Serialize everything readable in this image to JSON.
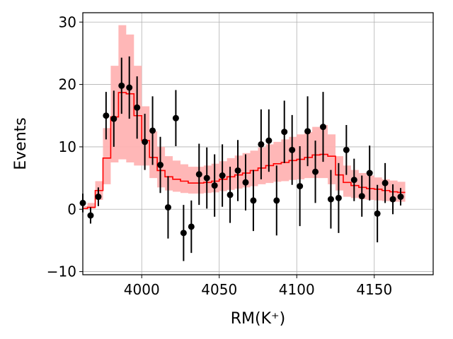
{
  "chart_data": {
    "type": "scatter",
    "title": "",
    "xlabel": "RM(K⁺)",
    "ylabel": "Events",
    "xlim": [
      3962,
      4188
    ],
    "ylim": [
      -10.5,
      31.5
    ],
    "xticks": [
      4000,
      4050,
      4100,
      4150
    ],
    "yticks": [
      -10,
      0,
      10,
      20,
      30
    ],
    "ytick_labels": [
      "−10",
      "0",
      "10",
      "20",
      "30"
    ],
    "grid": true,
    "legend": "none",
    "colors": {
      "data": "#000000",
      "fit_line": "#ff0000",
      "band": "#ffb3b3"
    },
    "series": [
      {
        "kind": "data_points_with_errors",
        "x": [
          3962,
          3967,
          3972,
          3977,
          3982,
          3987,
          3992,
          3997,
          4002,
          4007,
          4012,
          4017,
          4022,
          4027,
          4032,
          4037,
          4042,
          4047,
          4052,
          4057,
          4062,
          4067,
          4072,
          4077,
          4082,
          4087,
          4092,
          4097,
          4102,
          4107,
          4112,
          4117,
          4122,
          4127,
          4132,
          4137,
          4142,
          4147,
          4152,
          4157,
          4162,
          4167
        ],
        "y": [
          1.0,
          -1.0,
          2.0,
          15.0,
          14.5,
          19.8,
          19.5,
          16.3,
          10.8,
          12.6,
          7.1,
          0.3,
          14.6,
          -3.8,
          -2.8,
          5.6,
          5.0,
          3.8,
          5.4,
          2.3,
          6.2,
          4.3,
          1.4,
          10.4,
          11.0,
          1.4,
          12.4,
          9.5,
          3.7,
          12.5,
          6.0,
          13.2,
          1.6,
          1.8,
          9.5,
          4.7,
          2.1,
          5.8,
          -0.7,
          4.2,
          1.6,
          2.0
        ],
        "err": [
          1.5,
          1.3,
          1.5,
          3.8,
          4.5,
          4.5,
          5.0,
          5.0,
          4.5,
          5.5,
          4.5,
          5.0,
          4.5,
          4.5,
          4.2,
          4.9,
          4.9,
          5.0,
          5.0,
          4.5,
          4.9,
          4.5,
          4.9,
          5.6,
          5.0,
          5.6,
          5.0,
          5.6,
          6.4,
          5.6,
          5.0,
          5.6,
          4.7,
          5.6,
          4.0,
          3.4,
          3.3,
          4.4,
          4.6,
          3.2,
          2.4,
          1.4
        ]
      },
      {
        "kind": "fit_step_with_band",
        "edges": [
          3962,
          3965,
          3970,
          3975,
          3980,
          3985,
          3990,
          3995,
          4000,
          4005,
          4010,
          4015,
          4020,
          4025,
          4030,
          4035,
          4040,
          4045,
          4050,
          4055,
          4060,
          4065,
          4070,
          4075,
          4080,
          4085,
          4090,
          4095,
          4100,
          4105,
          4110,
          4115,
          4120,
          4125,
          4130,
          4135,
          4140,
          4145,
          4150,
          4155,
          4160,
          4165,
          4170
        ],
        "y": [
          0.1,
          0.3,
          3.0,
          8.2,
          14.8,
          18.7,
          18.5,
          15.0,
          11.0,
          8.3,
          6.2,
          5.2,
          4.8,
          4.5,
          4.2,
          4.2,
          4.3,
          4.5,
          4.8,
          5.2,
          5.5,
          5.8,
          6.2,
          6.6,
          7.0,
          7.3,
          7.5,
          7.8,
          8.0,
          8.3,
          8.7,
          8.8,
          8.5,
          5.5,
          4.3,
          3.8,
          3.5,
          3.3,
          3.2,
          3.0,
          2.8,
          2.7
        ],
        "lower": [
          0.0,
          0.1,
          1.5,
          4.0,
          7.5,
          8.0,
          7.5,
          7.0,
          7.0,
          5.0,
          3.5,
          3.0,
          2.8,
          2.6,
          2.5,
          2.5,
          2.6,
          2.7,
          2.9,
          3.1,
          3.3,
          3.5,
          3.7,
          4.0,
          4.2,
          4.4,
          4.5,
          4.7,
          4.8,
          5.0,
          5.0,
          5.0,
          4.0,
          3.0,
          2.0,
          1.8,
          1.6,
          1.5,
          1.4,
          1.3,
          1.2,
          1.2
        ],
        "upper": [
          0.5,
          1.0,
          4.5,
          13.0,
          23.0,
          29.5,
          28.0,
          23.0,
          16.5,
          12.5,
          10.0,
          8.5,
          7.8,
          7.2,
          6.8,
          6.8,
          7.0,
          7.3,
          7.7,
          8.2,
          8.6,
          9.0,
          9.4,
          9.9,
          10.4,
          10.8,
          11.2,
          11.6,
          12.0,
          12.4,
          13.2,
          13.5,
          12.0,
          8.5,
          7.0,
          6.3,
          5.8,
          5.4,
          5.1,
          4.8,
          4.6,
          4.4
        ]
      }
    ]
  }
}
